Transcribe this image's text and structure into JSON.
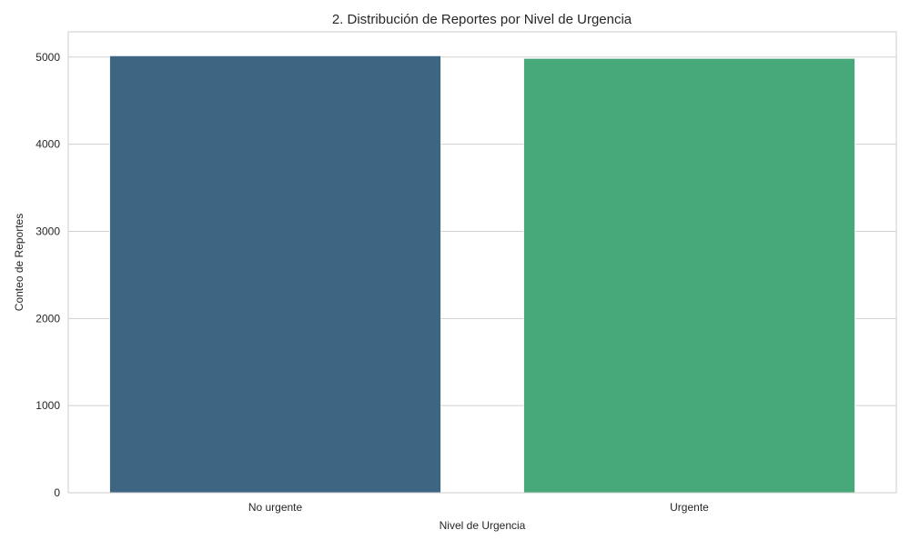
{
  "chart_data": {
    "type": "bar",
    "title": "2. Distribución de Reportes por Nivel de Urgencia",
    "xlabel": "Nivel de Urgencia",
    "ylabel": "Conteo de Reportes",
    "categories": [
      "No urgente",
      "Urgente"
    ],
    "values": [
      5015,
      4985
    ],
    "colors": [
      "#3e6682",
      "#47a97a"
    ],
    "ylim": [
      0,
      5290
    ],
    "yticks": [
      0,
      1000,
      2000,
      3000,
      4000,
      5000
    ],
    "grid": true,
    "grid_color": "#d0d0d0",
    "legend": "none"
  }
}
